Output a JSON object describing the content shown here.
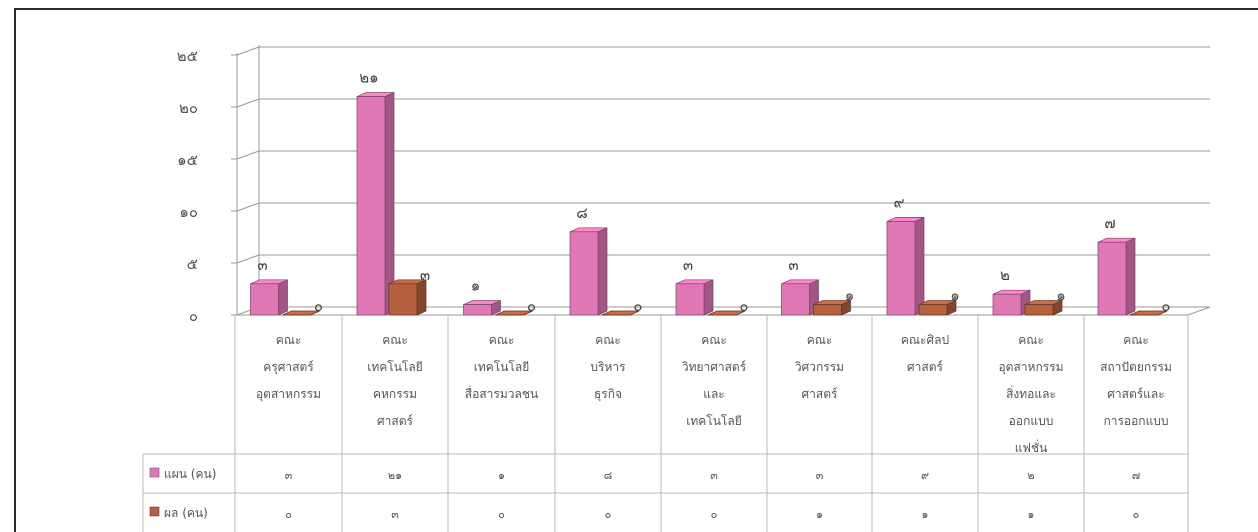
{
  "chart_data": {
    "type": "bar",
    "style": "3d-clustered-column-with-data-table",
    "ylim": [
      0,
      25
    ],
    "yticks": [
      "๐",
      "๕",
      "๑๐",
      "๑๕",
      "๒๐",
      "๒๕"
    ],
    "ytick_values": [
      0,
      5,
      10,
      15,
      20,
      25
    ],
    "grid": true,
    "categories": [
      [
        "คณะ",
        "ครุศาสตร์",
        "อุตสาหกรรม"
      ],
      [
        "คณะ",
        "เทคโนโลยี",
        "คหกรรม",
        "ศาสตร์"
      ],
      [
        "คณะ",
        "เทคโนโลยี",
        "สื่อสารมวลชน"
      ],
      [
        "คณะ",
        "บริหาร",
        "ธุรกิจ"
      ],
      [
        "คณะ",
        "วิทยาศาสตร์",
        "และ",
        "เทคโนโลยี"
      ],
      [
        "คณะ",
        "วิศวกรรม",
        "ศาสตร์"
      ],
      [
        "คณะศิลป",
        "ศาสตร์"
      ],
      [
        "คณะ",
        "อุตสาหกรรม",
        "สิ่งทอและ",
        "ออกแบบ",
        "แฟชั่น"
      ],
      [
        "คณะ",
        "สถาปัตยกรรม",
        "ศาสตร์และ",
        "การออกแบบ"
      ]
    ],
    "series": [
      {
        "name": "แผน (คน)",
        "color": "#e178b6",
        "values": [
          3,
          21,
          1,
          8,
          3,
          3,
          9,
          2,
          7
        ],
        "labels": [
          "๓",
          "๒๑",
          "๑",
          "๘",
          "๓",
          "๓",
          "๙",
          "๒",
          "๗"
        ]
      },
      {
        "name": "ผล (คน)",
        "color": "#b5603e",
        "values": [
          0,
          3,
          0,
          0,
          0,
          1,
          1,
          1,
          0
        ],
        "labels": [
          "๐",
          "๓",
          "๐",
          "๐",
          "๐",
          "๑",
          "๑",
          "๑",
          "๐"
        ]
      }
    ]
  }
}
